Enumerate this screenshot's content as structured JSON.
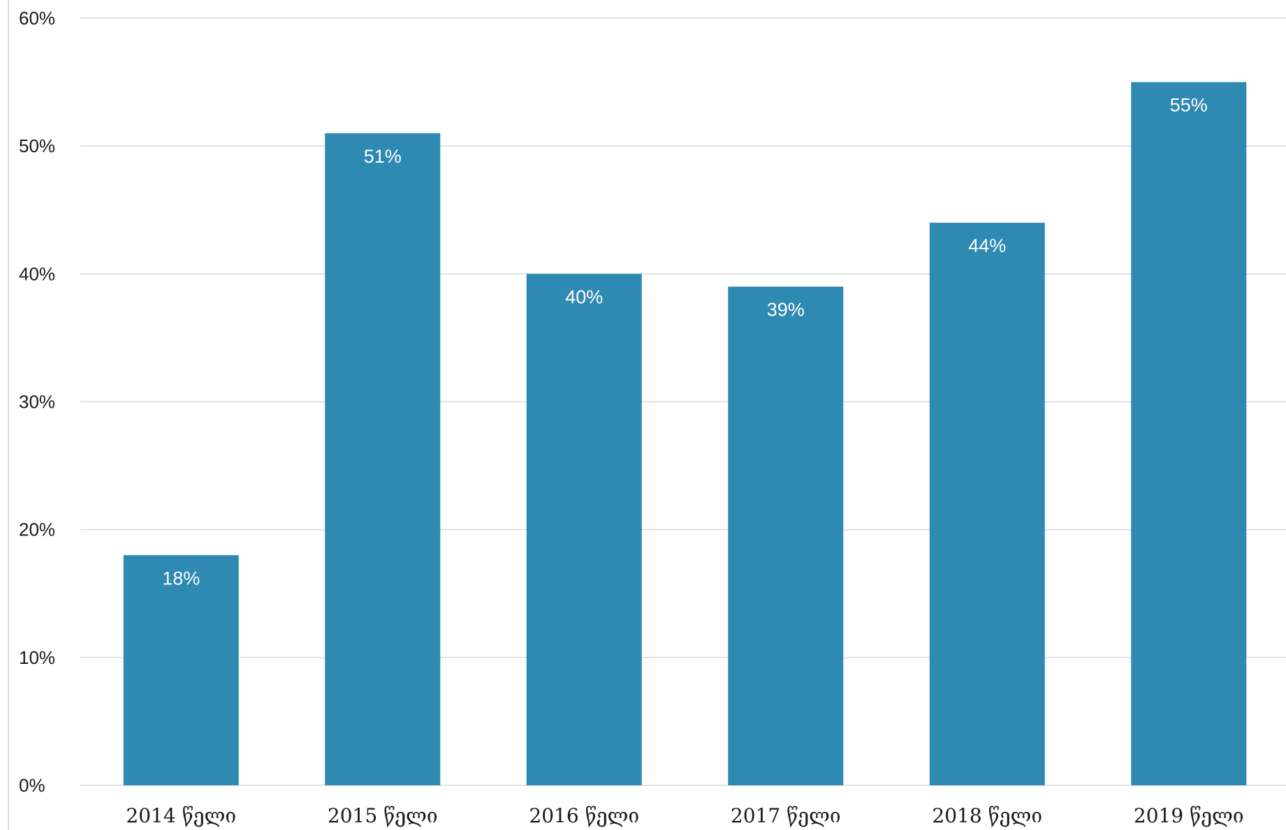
{
  "colors": {
    "bar": "#2e89b3",
    "value_label": "#ffffff",
    "gridline": "#d9d9d9",
    "text": "#1a1a1a"
  },
  "chart_data": {
    "type": "bar",
    "title": "",
    "xlabel": "",
    "ylabel": "",
    "categories": [
      "2014 წელი",
      "2015 წელი",
      "2016 წელი",
      "2017 წელი",
      "2018 წელი",
      "2019 წელი"
    ],
    "values": [
      18,
      51,
      40,
      39,
      44,
      55
    ],
    "value_labels": [
      "18%",
      "51%",
      "40%",
      "39%",
      "44%",
      "55%"
    ],
    "ylim": [
      0,
      60
    ],
    "yticks": [
      0,
      10,
      20,
      30,
      40,
      50,
      60
    ],
    "ytick_labels": [
      "0%",
      "10%",
      "20%",
      "30%",
      "40%",
      "50%",
      "60%"
    ],
    "grid": true,
    "legend": "none"
  }
}
